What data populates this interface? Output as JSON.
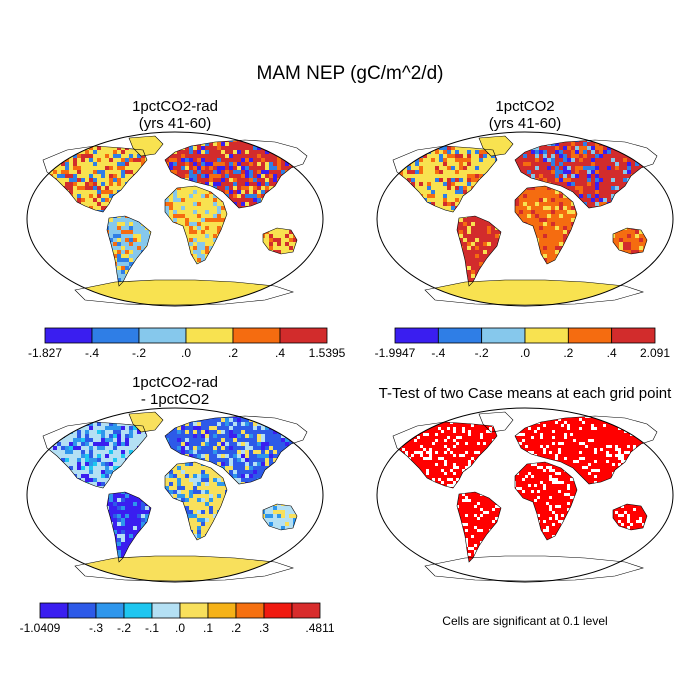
{
  "figure": {
    "title": "MAM NEP (gC/m^2/d)",
    "note": "Cells are significant at 0.1 level"
  },
  "panels": [
    {
      "title_line1": "1pctCO2-rad",
      "title_line2": "(yrs 41-60)"
    },
    {
      "title_line1": "1pctCO2",
      "title_line2": "(yrs 41-60)"
    },
    {
      "title_line1": "1pctCO2-rad",
      "title_line2": "- 1pctCO2"
    },
    {
      "title_line1": "T-Test of two Case means at each grid point",
      "title_line2": ""
    }
  ],
  "colors": {
    "map_outline": "#000000",
    "ocean": "#ffffff",
    "ttest_significant": "#ff0000"
  },
  "chart_data": [
    {
      "type": "heatmap",
      "title": "1pctCO2-rad (yrs 41-60)",
      "projection": "global map",
      "colorbar": {
        "colors": [
          "#3a1ef0",
          "#2f7ee6",
          "#86c8ec",
          "#f8e250",
          "#f56c10",
          "#d22c2c"
        ],
        "tick_labels": [
          "-1.827",
          "-.4",
          "-.2",
          ".0",
          ".2",
          ".4",
          "1.5395"
        ]
      }
    },
    {
      "type": "heatmap",
      "title": "1pctCO2 (yrs 41-60)",
      "projection": "global map",
      "colorbar": {
        "colors": [
          "#3a1ef0",
          "#2f7ee6",
          "#86c8ec",
          "#f8e250",
          "#f56c10",
          "#d22c2c"
        ],
        "tick_labels": [
          "-1.9947",
          "-.4",
          "-.2",
          ".0",
          ".2",
          ".4",
          "2.091"
        ]
      }
    },
    {
      "type": "heatmap",
      "title": "1pctCO2-rad - 1pctCO2",
      "projection": "global map",
      "colorbar": {
        "colors": [
          "#3a1ef0",
          "#2d5ae8",
          "#2e96ec",
          "#1ec6f0",
          "#b4e0f4",
          "#f8e05c",
          "#f5b218",
          "#f57010",
          "#f01a10",
          "#d82c2c"
        ],
        "tick_labels": [
          "-1.0409",
          "-.3",
          "-.2",
          "-.1",
          ".0",
          ".1",
          ".2",
          ".3",
          ".4811"
        ]
      }
    },
    {
      "type": "heatmap",
      "title": "T-Test of two Case means at each grid point",
      "projection": "global map",
      "legend": "Cells are significant at 0.1 level"
    }
  ]
}
